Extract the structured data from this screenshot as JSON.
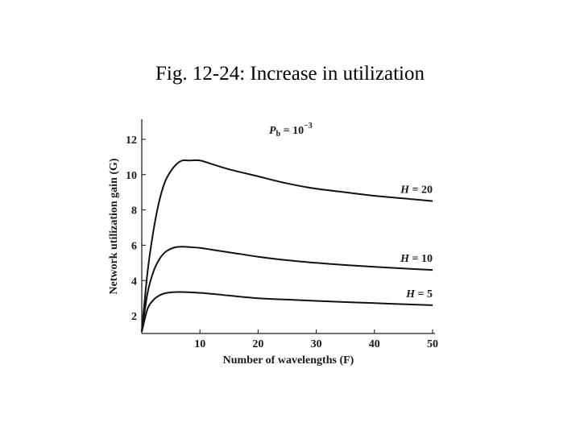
{
  "figure": {
    "title": "Fig. 12-24: Increase in utilization"
  },
  "chart_data": {
    "type": "line",
    "title": "",
    "xlabel": "Number of wavelengths (F)",
    "ylabel": "Network utilization gain (G)",
    "xlim": [
      0,
      50
    ],
    "ylim": [
      1,
      13
    ],
    "x_ticks": [
      10,
      20,
      30,
      40,
      50
    ],
    "y_ticks": [
      2,
      4,
      6,
      8,
      10,
      12
    ],
    "grid": false,
    "annotation": {
      "base": "P",
      "sub": "b",
      "text": " = 10",
      "sup": "−3"
    },
    "series": [
      {
        "name": "H = 20",
        "label": {
          "italic": "H",
          "text": " = 20"
        },
        "x": [
          0,
          1,
          2,
          3,
          4,
          5,
          6,
          7,
          8,
          10,
          12,
          15,
          20,
          25,
          30,
          35,
          40,
          45,
          50
        ],
        "y": [
          1.1,
          4.5,
          6.8,
          8.5,
          9.6,
          10.2,
          10.6,
          10.8,
          10.8,
          10.8,
          10.6,
          10.3,
          9.9,
          9.5,
          9.2,
          9.0,
          8.8,
          8.65,
          8.5
        ]
      },
      {
        "name": "H = 10",
        "label": {
          "italic": "H",
          "text": " = 10"
        },
        "x": [
          0,
          1,
          2,
          3,
          4,
          5,
          6,
          7,
          8,
          10,
          12,
          15,
          20,
          25,
          30,
          35,
          40,
          45,
          50
        ],
        "y": [
          1.1,
          3.3,
          4.5,
          5.2,
          5.6,
          5.8,
          5.9,
          5.92,
          5.9,
          5.85,
          5.75,
          5.6,
          5.35,
          5.15,
          5.0,
          4.88,
          4.78,
          4.68,
          4.6
        ]
      },
      {
        "name": "H = 5",
        "label": {
          "italic": "H",
          "text": " = 5"
        },
        "x": [
          0,
          1,
          2,
          3,
          4,
          5,
          6,
          7,
          8,
          10,
          12,
          15,
          20,
          25,
          30,
          35,
          40,
          45,
          50
        ],
        "y": [
          1.1,
          2.4,
          2.9,
          3.15,
          3.28,
          3.33,
          3.35,
          3.35,
          3.34,
          3.3,
          3.25,
          3.15,
          3.0,
          2.92,
          2.85,
          2.78,
          2.72,
          2.66,
          2.6
        ]
      }
    ]
  }
}
